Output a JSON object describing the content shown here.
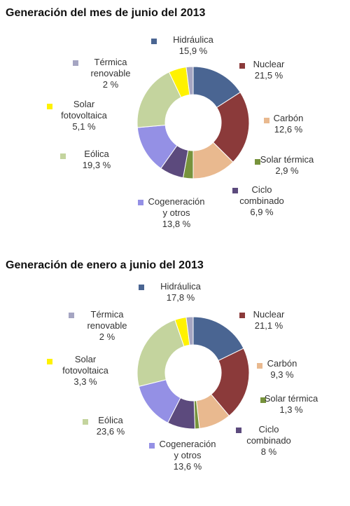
{
  "chart_data": [
    {
      "type": "pie",
      "title": "Generación del mes de junio del 2013",
      "unit": "%",
      "slices": [
        {
          "label": "Hidráulica",
          "value": 15.9,
          "display": "15,9 %",
          "color": "#4a6592"
        },
        {
          "label": "Nuclear",
          "value": 21.5,
          "display": "21,5 %",
          "color": "#8b3a3a"
        },
        {
          "label": "Carbón",
          "value": 12.6,
          "display": "12,6 %",
          "color": "#e9b98f"
        },
        {
          "label": "Solar térmica",
          "value": 2.9,
          "display": "2,9 %",
          "color": "#77933c"
        },
        {
          "label": "Ciclo combinado",
          "value": 6.9,
          "display": "6,9 %",
          "color": "#5c4a7d"
        },
        {
          "label": "Cogeneración y otros",
          "value": 13.8,
          "display": "13,8 %",
          "color": "#9490e5"
        },
        {
          "label": "Eólica",
          "value": 19.3,
          "display": "19,3 %",
          "color": "#c4d49e"
        },
        {
          "label": "Solar fotovoltaica",
          "value": 5.1,
          "display": "5,1 %",
          "color": "#fff200"
        },
        {
          "label": "Térmica renovable",
          "value": 2,
          "display": "2 %",
          "color": "#a5a5c2"
        }
      ]
    },
    {
      "type": "pie",
      "title": "Generación de enero a junio del 2013",
      "unit": "%",
      "slices": [
        {
          "label": "Hidráulica",
          "value": 17.8,
          "display": "17,8 %",
          "color": "#4a6592"
        },
        {
          "label": "Nuclear",
          "value": 21.1,
          "display": "21,1 %",
          "color": "#8b3a3a"
        },
        {
          "label": "Carbón",
          "value": 9.3,
          "display": "9,3 %",
          "color": "#e9b98f"
        },
        {
          "label": "Solar térmica",
          "value": 1.3,
          "display": "1,3 %",
          "color": "#77933c"
        },
        {
          "label": "Ciclo combinado",
          "value": 8,
          "display": "8 %",
          "color": "#5c4a7d"
        },
        {
          "label": "Cogeneración y otros",
          "value": 13.6,
          "display": "13,6 %",
          "color": "#9490e5"
        },
        {
          "label": "Eólica",
          "value": 23.6,
          "display": "23,6 %",
          "color": "#c4d49e"
        },
        {
          "label": "Solar fotovoltaica",
          "value": 3.3,
          "display": "3,3 %",
          "color": "#fff200"
        },
        {
          "label": "Térmica renovable",
          "value": 2,
          "display": "2 %",
          "color": "#a5a5c2"
        }
      ]
    }
  ]
}
